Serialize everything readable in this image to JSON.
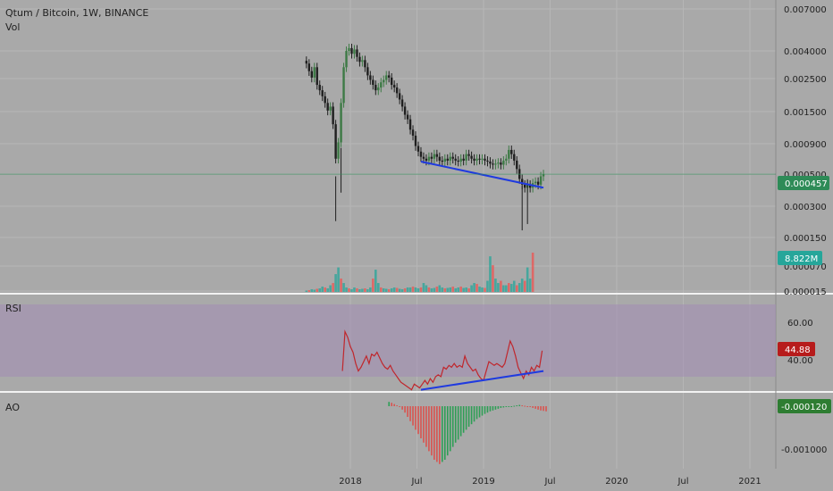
{
  "legend": {
    "symbol": "Qtum / Bitcoin, 1W, BINANCE",
    "volume": "Vol"
  },
  "panes": {
    "rsi_label": "RSI",
    "ao_label": "AO"
  },
  "colors": {
    "up": "#26a69a",
    "down": "#ef5350",
    "candle_up": "#3d7a45",
    "candle_down": "#1f1f1f",
    "trendline": "#1f3ae0",
    "rsi_line": "#c0262c",
    "rsi_band": "#a390b4",
    "price_badge": "#2e8b57",
    "rsi_badge": "#b71c1c",
    "ao_badge": "#2e7d32"
  },
  "price_axis": {
    "ticks": [
      "0.007000",
      "0.004000",
      "0.002500",
      "0.001500",
      "0.000900",
      "0.000500",
      "0.000300",
      "0.000150",
      "0.000070",
      "0.000015"
    ],
    "current_price": "0.000457",
    "current_volume": "8.822M"
  },
  "rsi_axis": {
    "ticks": [
      "60.00",
      "40.00"
    ],
    "current": "44.88"
  },
  "ao_axis": {
    "ticks": [
      "-0.001000"
    ],
    "current": "-0.000120"
  },
  "time_axis": [
    "2018",
    "Jul",
    "2019",
    "Jul",
    "2020",
    "Jul",
    "2021"
  ],
  "chart_data": {
    "type": "candlestick",
    "interval": "1W",
    "log_scale": true,
    "price_series": {
      "points": [
        [
          2017.67,
          0.0032
        ],
        [
          2017.69,
          0.0028
        ],
        [
          2017.71,
          0.0025
        ],
        [
          2017.73,
          0.003
        ],
        [
          2017.75,
          0.0022
        ],
        [
          2017.77,
          0.002
        ],
        [
          2017.79,
          0.0018
        ],
        [
          2017.81,
          0.0016
        ],
        [
          2017.83,
          0.0014
        ],
        [
          2017.85,
          0.0015
        ],
        [
          2017.87,
          0.0011
        ],
        [
          2017.89,
          0.0006
        ],
        [
          2017.91,
          0.0008
        ],
        [
          2017.93,
          0.0016
        ],
        [
          2017.95,
          0.003
        ],
        [
          2017.97,
          0.004
        ],
        [
          2017.99,
          0.0042
        ],
        [
          2018.01,
          0.0038
        ],
        [
          2018.03,
          0.0041
        ],
        [
          2018.05,
          0.0036
        ],
        [
          2018.07,
          0.0033
        ],
        [
          2018.09,
          0.0034
        ],
        [
          2018.11,
          0.003
        ],
        [
          2018.13,
          0.0026
        ],
        [
          2018.15,
          0.0024
        ],
        [
          2018.17,
          0.0022
        ],
        [
          2018.19,
          0.002
        ],
        [
          2018.21,
          0.0021
        ],
        [
          2018.23,
          0.0023
        ],
        [
          2018.25,
          0.0024
        ],
        [
          2018.27,
          0.0026
        ],
        [
          2018.29,
          0.0025
        ],
        [
          2018.31,
          0.0022
        ],
        [
          2018.33,
          0.0021
        ],
        [
          2018.35,
          0.0019
        ],
        [
          2018.37,
          0.0017
        ],
        [
          2018.39,
          0.0015
        ],
        [
          2018.41,
          0.0013
        ],
        [
          2018.43,
          0.0012
        ],
        [
          2018.45,
          0.001
        ],
        [
          2018.47,
          0.0009
        ],
        [
          2018.49,
          0.00075
        ],
        [
          2018.51,
          0.00068
        ],
        [
          2018.53,
          0.00062
        ],
        [
          2018.55,
          0.0006
        ],
        [
          2018.57,
          0.00058
        ],
        [
          2018.59,
          0.00062
        ],
        [
          2018.61,
          0.0006
        ],
        [
          2018.63,
          0.00065
        ],
        [
          2018.65,
          0.00062
        ],
        [
          2018.67,
          0.00058
        ],
        [
          2018.69,
          0.00057
        ],
        [
          2018.71,
          0.0006
        ],
        [
          2018.73,
          0.00058
        ],
        [
          2018.75,
          0.00062
        ],
        [
          2018.77,
          0.0006
        ],
        [
          2018.79,
          0.00058
        ],
        [
          2018.81,
          0.00057
        ],
        [
          2018.83,
          0.0006
        ],
        [
          2018.85,
          0.00058
        ],
        [
          2018.87,
          0.00065
        ],
        [
          2018.89,
          0.00063
        ],
        [
          2018.91,
          0.0006
        ],
        [
          2018.93,
          0.00058
        ],
        [
          2018.95,
          0.0006
        ],
        [
          2018.97,
          0.00059
        ],
        [
          2018.99,
          0.0006
        ],
        [
          2019.01,
          0.00058
        ],
        [
          2019.03,
          0.00057
        ],
        [
          2019.05,
          0.00055
        ],
        [
          2019.07,
          0.00054
        ],
        [
          2019.09,
          0.00055
        ],
        [
          2019.11,
          0.00056
        ],
        [
          2019.13,
          0.00054
        ],
        [
          2019.15,
          0.00058
        ],
        [
          2019.17,
          0.0006
        ],
        [
          2019.19,
          0.0007
        ],
        [
          2019.21,
          0.00065
        ],
        [
          2019.23,
          0.00058
        ],
        [
          2019.25,
          0.0005
        ],
        [
          2019.27,
          0.00042
        ],
        [
          2019.29,
          0.00038
        ],
        [
          2019.31,
          0.00036
        ],
        [
          2019.33,
          0.00038
        ],
        [
          2019.35,
          0.00036
        ],
        [
          2019.37,
          0.00039
        ],
        [
          2019.39,
          0.0004
        ],
        [
          2019.41,
          0.00038
        ],
        [
          2019.43,
          0.00044
        ],
        [
          2019.45,
          0.000457
        ]
      ]
    },
    "volume_series": [
      0.3,
      0.4,
      0.6,
      0.5,
      0.7,
      0.8,
      1.2,
      1.0,
      0.8,
      1.5,
      2.0,
      4.0,
      5.5,
      3.0,
      2.0,
      1.0,
      0.8,
      0.6,
      1.0,
      0.8,
      0.6,
      0.7,
      0.8,
      0.6,
      1.0,
      3.0,
      5.0,
      2.0,
      1.0,
      0.8,
      0.7,
      0.6,
      0.8,
      1.0,
      0.9,
      0.7,
      0.6,
      0.8,
      1.0,
      1.0,
      1.2,
      1.0,
      0.8,
      1.0,
      2.0,
      1.5,
      1.0,
      0.8,
      0.9,
      1.2,
      1.5,
      1.0,
      0.8,
      0.9,
      1.0,
      1.2,
      0.8,
      1.0,
      1.2,
      0.9,
      1.0,
      0.8,
      1.5,
      2.0,
      1.8,
      1.2,
      1.0,
      0.9,
      2.5,
      8.0,
      6.0,
      3.0,
      2.0,
      2.5,
      1.5,
      1.5,
      2.0,
      1.8,
      2.5,
      1.5,
      2.0,
      3.0,
      2.5,
      5.5,
      3.0,
      8.822
    ],
    "rsi_series": [
      [
        2017.94,
        34
      ],
      [
        2017.96,
        55
      ],
      [
        2017.98,
        52
      ],
      [
        2018.0,
        47
      ],
      [
        2018.02,
        44
      ],
      [
        2018.04,
        38
      ],
      [
        2018.06,
        34
      ],
      [
        2018.08,
        36
      ],
      [
        2018.1,
        39
      ],
      [
        2018.12,
        42
      ],
      [
        2018.14,
        38
      ],
      [
        2018.16,
        43
      ],
      [
        2018.18,
        42
      ],
      [
        2018.2,
        44
      ],
      [
        2018.22,
        41
      ],
      [
        2018.24,
        38
      ],
      [
        2018.26,
        36
      ],
      [
        2018.28,
        35
      ],
      [
        2018.3,
        37
      ],
      [
        2018.32,
        34
      ],
      [
        2018.34,
        32
      ],
      [
        2018.36,
        30
      ],
      [
        2018.38,
        28
      ],
      [
        2018.4,
        27
      ],
      [
        2018.42,
        26
      ],
      [
        2018.44,
        25
      ],
      [
        2018.46,
        24
      ],
      [
        2018.48,
        27
      ],
      [
        2018.5,
        26
      ],
      [
        2018.52,
        25
      ],
      [
        2018.54,
        27
      ],
      [
        2018.56,
        29
      ],
      [
        2018.58,
        27
      ],
      [
        2018.6,
        30
      ],
      [
        2018.62,
        28
      ],
      [
        2018.64,
        31
      ],
      [
        2018.66,
        32
      ],
      [
        2018.68,
        31
      ],
      [
        2018.7,
        36
      ],
      [
        2018.72,
        35
      ],
      [
        2018.74,
        37
      ],
      [
        2018.76,
        36
      ],
      [
        2018.78,
        38
      ],
      [
        2018.8,
        36
      ],
      [
        2018.82,
        37
      ],
      [
        2018.84,
        36
      ],
      [
        2018.86,
        42
      ],
      [
        2018.88,
        38
      ],
      [
        2018.9,
        36
      ],
      [
        2018.92,
        34
      ],
      [
        2018.94,
        35
      ],
      [
        2018.96,
        32
      ],
      [
        2018.98,
        30
      ],
      [
        2019.0,
        29
      ],
      [
        2019.02,
        34
      ],
      [
        2019.04,
        39
      ],
      [
        2019.06,
        38
      ],
      [
        2019.08,
        37
      ],
      [
        2019.1,
        38
      ],
      [
        2019.12,
        37
      ],
      [
        2019.14,
        36
      ],
      [
        2019.16,
        38
      ],
      [
        2019.18,
        44
      ],
      [
        2019.2,
        50
      ],
      [
        2019.22,
        47
      ],
      [
        2019.24,
        42
      ],
      [
        2019.26,
        36
      ],
      [
        2019.28,
        33
      ],
      [
        2019.3,
        30
      ],
      [
        2019.32,
        34
      ],
      [
        2019.34,
        32
      ],
      [
        2019.36,
        36
      ],
      [
        2019.38,
        34
      ],
      [
        2019.4,
        37
      ],
      [
        2019.42,
        36
      ],
      [
        2019.44,
        44.88
      ]
    ],
    "rsi_band": [
      30,
      70
    ],
    "ao_series": [
      0.0001,
      8e-05,
      5e-05,
      2e-05,
      -2e-05,
      -8e-05,
      -0.00015,
      -0.00025,
      -0.00035,
      -0.00045,
      -0.00055,
      -0.00065,
      -0.00075,
      -0.00085,
      -0.00095,
      -0.00105,
      -0.00115,
      -0.00125,
      -0.0013,
      -0.00135,
      -0.0013,
      -0.00125,
      -0.00115,
      -0.00105,
      -0.00095,
      -0.00085,
      -0.00078,
      -0.0007,
      -0.00062,
      -0.00055,
      -0.00048,
      -0.00042,
      -0.00036,
      -0.0003,
      -0.00026,
      -0.00022,
      -0.00018,
      -0.00015,
      -0.00012,
      -0.0001,
      -8e-05,
      -6e-05,
      -4e-05,
      -3e-05,
      -2e-05,
      -1e-05,
      0.0,
      1e-05,
      2e-05,
      3e-05,
      2e-05,
      1e-05,
      0.0,
      -2e-05,
      -4e-05,
      -6e-05,
      -8e-05,
      -0.0001,
      -0.00011,
      -0.00012
    ],
    "price_trendline": [
      [
        2018.53,
        0.00057
      ],
      [
        2019.45,
        0.00036
      ]
    ],
    "rsi_trendline": [
      [
        2018.53,
        24
      ],
      [
        2019.45,
        34
      ]
    ]
  }
}
